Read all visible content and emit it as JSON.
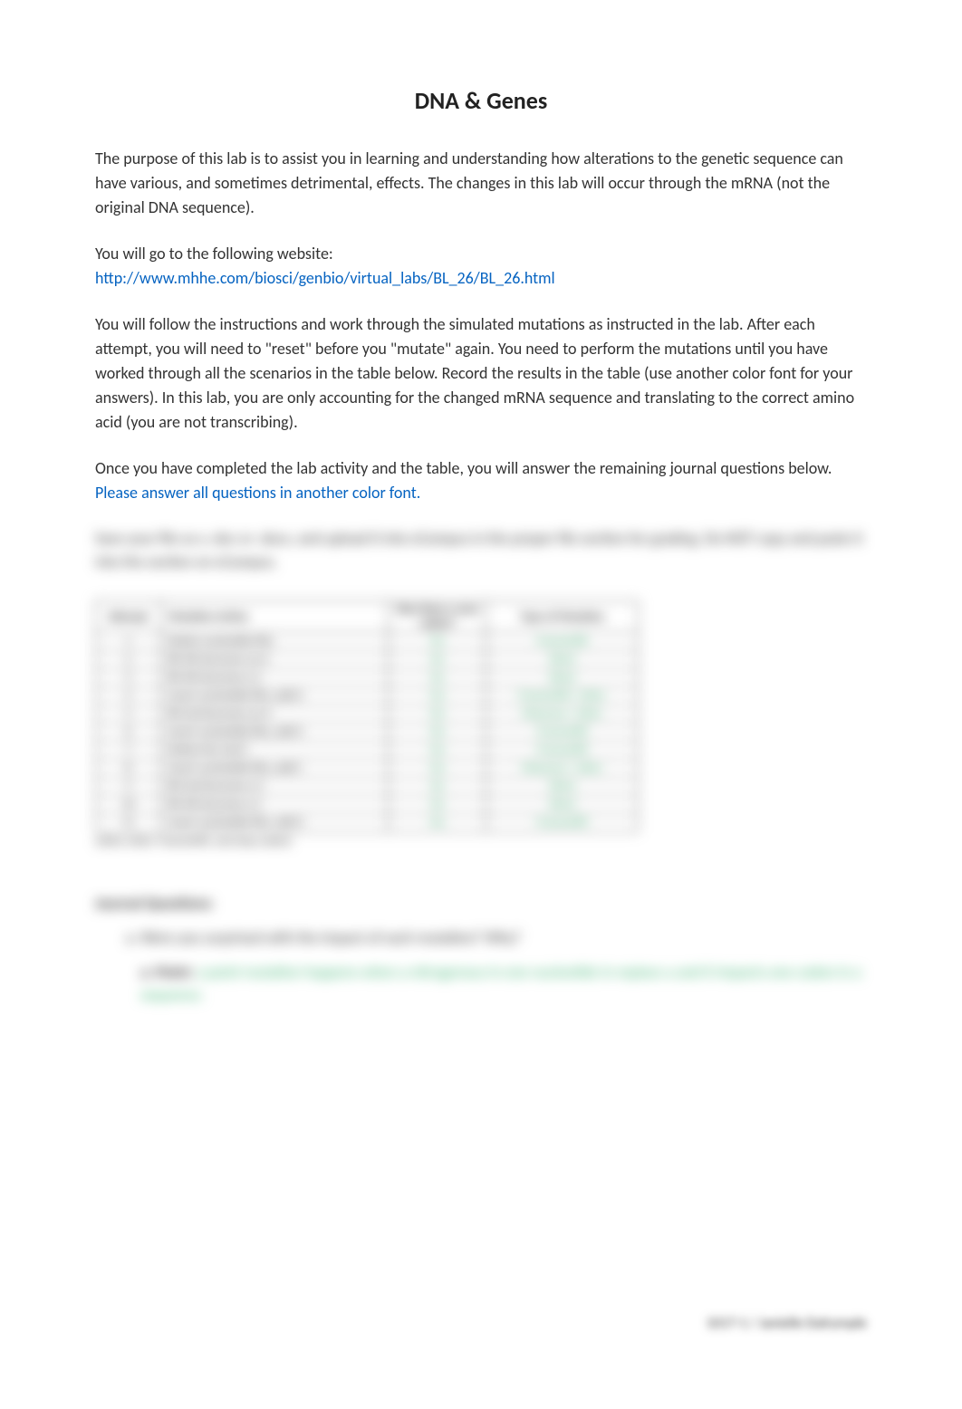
{
  "title": "DNA & Genes",
  "intro": "The purpose of this lab is to assist you in learning and understanding how alterations to the genetic sequence can have various, and sometimes detrimental, effects. The changes in this lab will occur through the mRNA (not the original DNA sequence).",
  "website_intro": "You will go to the following website:",
  "website_link": "http://www.mhhe.com/biosci/genbio/virtual_labs/BL_26/BL_26.html",
  "instructions": "You will follow the instructions and work through the simulated mutations as instructed in the lab. After each attempt, you will need to \"reset\" before you \"mutate\" again. You need to perform the mutations until you have worked through all the scenarios in the table below. Record the results in the table (use another color font for your answers). In this lab, you are only accounting for the changed mRNA sequence and translating to the correct amino acid (you are not transcribing).",
  "closing_line_prefix": "Once you have completed the lab activity and the table, you will answer the remaining journal questions below. ",
  "closing_link": "Please answer all questions in another color font.",
  "blurred_intro": "Save your file as a .doc or .docx, and upload it into eCampus in the proper file section for grading. Do NOT copy and paste it into the section on eCampus.",
  "table": {
    "headers": {
      "attempt": "Attempt",
      "mutation": "Mutation Action",
      "newcodon": "Was there a new codon?",
      "type": "Type of Mutation"
    },
    "rows": [
      {
        "n": "1",
        "action": "Delete nucleotide #4a",
        "codon": "Yes",
        "type": "Frameshift"
      },
      {
        "n": "2",
        "action": "#6 4th becomes an A",
        "codon": "No",
        "type": "Silent"
      },
      {
        "n": "3",
        "action": "#6 4th becomes a C",
        "codon": "No",
        "type": "Silent"
      },
      {
        "n": "4",
        "action": "Insert nucleotide #4a, add A",
        "codon": "Yes",
        "type": "Frameshift / other"
      },
      {
        "n": "5",
        "action": "#6 2nd becomes an A",
        "codon": "Yes",
        "type": "Missense / other"
      },
      {
        "n": "6",
        "action": "Insert nucleotide #4a, add A",
        "codon": "Yes",
        "type": "Frameshift"
      },
      {
        "n": "7",
        "action": "Delete the 2nd C",
        "codon": "Yes",
        "type": "Frameshift"
      },
      {
        "n": "8",
        "action": "Insert nucleotide #4a, add C",
        "codon": "Yes",
        "type": "Missense / other"
      },
      {
        "n": "9",
        "action": "#6 2nd becomes a C",
        "codon": "No",
        "type": "Silent"
      },
      {
        "n": "10",
        "action": "#6 4th becomes a C",
        "codon": "No",
        "type": "Silent"
      },
      {
        "n": "11",
        "action": "Insert nucleotide #4a, add G",
        "codon": "Yes",
        "type": "Frameshift"
      }
    ],
    "caption": "(other other: frameshift, and stop codon)"
  },
  "journal_header": "Journal Questions:",
  "question1": "Were you surprised with the impact of each mutation? Why?",
  "answer1_prefix": "a. Point:",
  "answer1_text": " a point mutation happens when a nitrogenous in one nucleotide in replace a and it impacts one codon in a sequence.",
  "footer": "1017-1 / Janielle Dalrymple"
}
